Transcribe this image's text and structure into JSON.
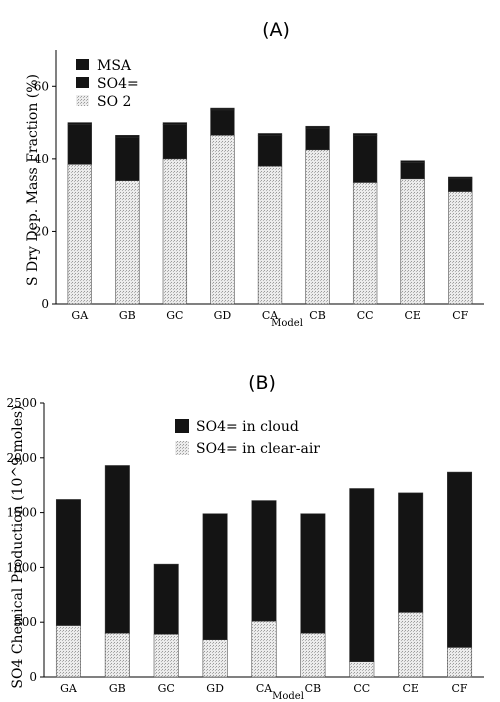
{
  "panels": [
    {
      "panel_label": "(A)",
      "xlabel": "Model",
      "ylabel": "S Dry Dep. Mass Fraction (%)",
      "legend": [
        "MSA",
        "SO4=",
        "SO 2"
      ]
    },
    {
      "panel_label": "(B)",
      "xlabel": "Model",
      "ylabel": "SO4 Chemical Production (10^9 moles)",
      "legend": [
        "SO4= in cloud",
        "SO4= in clear-air"
      ]
    }
  ],
  "colors": {
    "dark": "#141414",
    "light": "#d9d9d9"
  },
  "chart_data": [
    {
      "type": "bar",
      "stacked": true,
      "title": "(A)",
      "xlabel": "Model",
      "ylabel": "S Dry Dep. Mass Fraction (%)",
      "categories": [
        "GA",
        "GB",
        "GC",
        "GD",
        "CA",
        "CB",
        "CC",
        "CE",
        "CF"
      ],
      "series": [
        {
          "name": "SO 2",
          "values": [
            38.5,
            34,
            40,
            46.5,
            38,
            42.5,
            33.5,
            34.5,
            31
          ]
        },
        {
          "name": "SO4=",
          "values": [
            11,
            12,
            9.5,
            7,
            8.5,
            6,
            13,
            4.5,
            3.5
          ]
        },
        {
          "name": "MSA",
          "values": [
            0.5,
            0.5,
            0.5,
            0.5,
            0.5,
            0.5,
            0.5,
            0.5,
            0.5
          ]
        }
      ],
      "ylim": [
        0,
        70
      ],
      "yticks": [
        0,
        20,
        40,
        60
      ],
      "grid": false,
      "legend_position": "top-left"
    },
    {
      "type": "bar",
      "stacked": true,
      "title": "(B)",
      "xlabel": "Model",
      "ylabel": "SO4 Chemical Production (10^9 moles)",
      "categories": [
        "GA",
        "GB",
        "GC",
        "GD",
        "CA",
        "CB",
        "CC",
        "CE",
        "CF"
      ],
      "series": [
        {
          "name": "SO4= in clear-air",
          "values": [
            470,
            400,
            390,
            340,
            510,
            400,
            140,
            590,
            270
          ]
        },
        {
          "name": "SO4= in cloud",
          "values": [
            1150,
            1530,
            640,
            1150,
            1100,
            1090,
            1580,
            1090,
            1600
          ]
        }
      ],
      "ylim": [
        0,
        2500
      ],
      "yticks": [
        0,
        500,
        1000,
        1500,
        2000,
        2500
      ],
      "grid": false,
      "legend_position": "top-center"
    }
  ]
}
